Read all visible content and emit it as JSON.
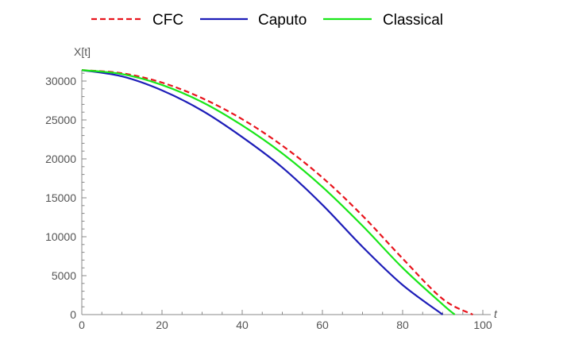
{
  "chart_data": {
    "type": "line",
    "title": "",
    "xlabel": "t",
    "ylabel": "X[t]",
    "xlim": [
      0,
      100
    ],
    "ylim": [
      0,
      31000
    ],
    "x_ticks": [
      0,
      20,
      40,
      60,
      80,
      100
    ],
    "x_tick_labels": [
      "0",
      "20",
      "40",
      "60",
      "80",
      "100"
    ],
    "y_ticks": [
      0,
      5000,
      10000,
      15000,
      20000,
      25000,
      30000
    ],
    "y_tick_labels": [
      "0",
      "5000",
      "10000",
      "15000",
      "20000",
      "25000",
      "30000"
    ],
    "grid": false,
    "legend_position": "top",
    "series": [
      {
        "name": "CFC",
        "color": "#e8141c",
        "dash": "dashed",
        "x": [
          0,
          10,
          20,
          30,
          40,
          50,
          60,
          70,
          80,
          90,
          97.5
        ],
        "y": [
          31400,
          31000,
          29800,
          27800,
          25100,
          21700,
          17600,
          12700,
          7200,
          2000,
          0
        ]
      },
      {
        "name": "Caputo",
        "color": "#1d1db8",
        "dash": "solid",
        "x": [
          0,
          10,
          20,
          30,
          40,
          50,
          60,
          70,
          80,
          90
        ],
        "y": [
          31400,
          30600,
          28800,
          26200,
          22800,
          18900,
          14100,
          8700,
          3800,
          0
        ]
      },
      {
        "name": "Classical",
        "color": "#19e619",
        "dash": "solid",
        "x": [
          0,
          10,
          20,
          30,
          40,
          50,
          60,
          70,
          80,
          90,
          93
        ],
        "y": [
          31400,
          30900,
          29500,
          27300,
          24300,
          20700,
          16400,
          11400,
          6000,
          1300,
          0
        ]
      }
    ]
  }
}
